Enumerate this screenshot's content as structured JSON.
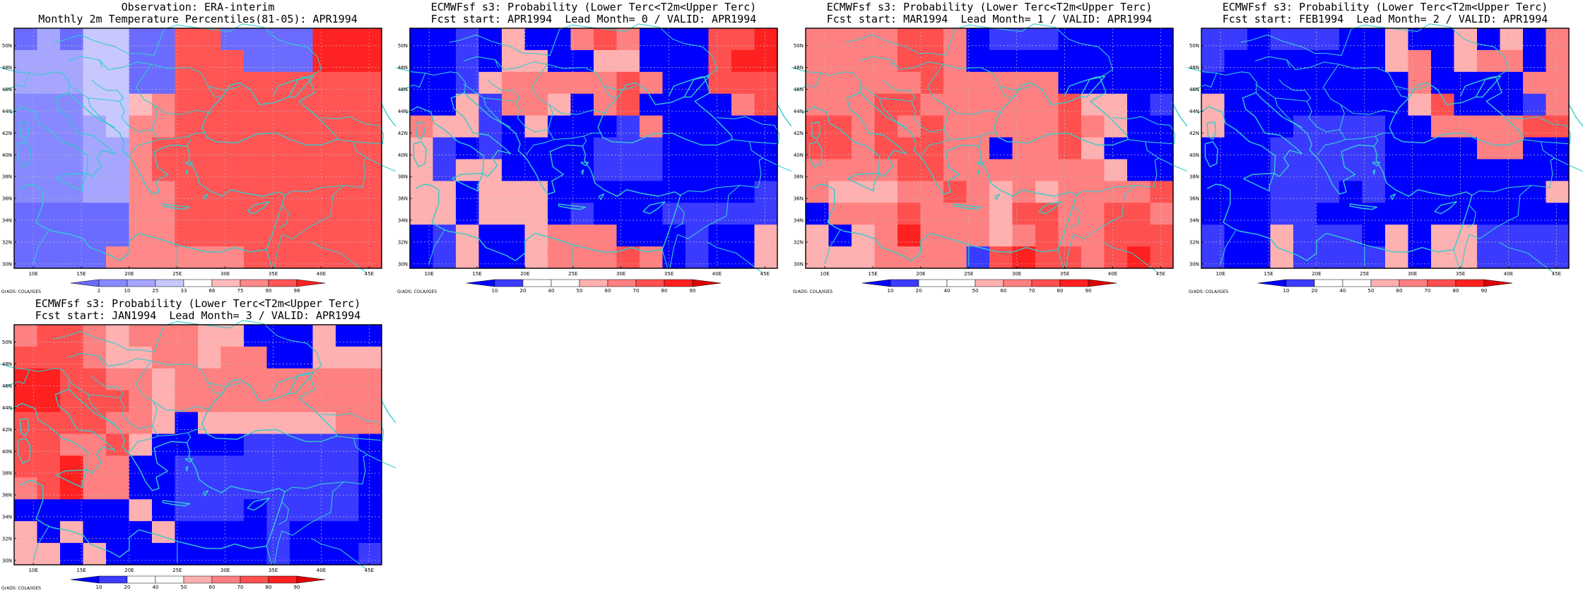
{
  "colors": {
    "coast": "#33cccc",
    "frame": "#000000",
    "grid": "#bbbbbb",
    "obs_scale": [
      "#6b6bff",
      "#8888ff",
      "#a6a6ff",
      "#c8c8ff",
      "#ffffff",
      "#ffbbbb",
      "#ff8888",
      "#ff5555",
      "#ff2222"
    ],
    "prob_scale": [
      "#0000ff",
      "#3b3bff",
      "#ffffff",
      "#ffffff",
      "#ffb0b0",
      "#ff8080",
      "#ff5050",
      "#ff2020",
      "#dd0000"
    ]
  },
  "axes": {
    "lat_labels": [
      "30N",
      "32N",
      "34N",
      "36N",
      "38N",
      "40N",
      "42N",
      "44N",
      "46N",
      "48N",
      "50N"
    ],
    "lon_labels": [
      "10E",
      "15E",
      "20E",
      "25E",
      "30E",
      "35E",
      "40E",
      "45E"
    ]
  },
  "panels": [
    {
      "title_line1": "Observation: ERA-interim",
      "title_line2": "Monthly 2m Temperature Percentiles(81-05): APR1994",
      "colorbar_labels": [
        "2",
        "10",
        "25",
        "33",
        "66",
        "75",
        "90",
        "98"
      ],
      "credit": "GrADS: COLA/IGES",
      "map_data": {
        "type": "gridded-field",
        "region": "30N-51N, 8E-46E",
        "valid": "APR1994",
        "grid": [
          [
            0,
            2,
            0,
            3,
            3,
            0,
            0,
            7,
            7,
            0,
            0,
            0,
            0,
            8,
            8,
            8
          ],
          [
            2,
            2,
            2,
            3,
            3,
            0,
            0,
            7,
            7,
            7,
            0,
            0,
            0,
            8,
            8,
            8
          ],
          [
            2,
            2,
            2,
            3,
            3,
            0,
            0,
            7,
            7,
            7,
            7,
            7,
            7,
            7,
            7,
            7
          ],
          [
            1,
            1,
            1,
            3,
            3,
            5,
            6,
            7,
            7,
            7,
            7,
            7,
            7,
            7,
            7,
            7
          ],
          [
            1,
            1,
            1,
            2,
            3,
            6,
            6,
            7,
            7,
            7,
            7,
            7,
            7,
            7,
            7,
            7
          ],
          [
            1,
            1,
            1,
            2,
            2,
            6,
            7,
            7,
            7,
            7,
            7,
            7,
            7,
            7,
            7,
            7
          ],
          [
            1,
            1,
            1,
            2,
            2,
            6,
            7,
            7,
            7,
            7,
            7,
            7,
            7,
            7,
            7,
            7
          ],
          [
            1,
            1,
            1,
            2,
            2,
            6,
            6,
            7,
            7,
            7,
            7,
            7,
            7,
            7,
            7,
            7
          ],
          [
            0,
            0,
            0,
            0,
            0,
            6,
            6,
            7,
            7,
            7,
            7,
            7,
            7,
            7,
            7,
            7
          ],
          [
            0,
            0,
            0,
            0,
            0,
            6,
            6,
            7,
            7,
            7,
            7,
            7,
            7,
            7,
            7,
            7
          ],
          [
            0,
            0,
            0,
            0,
            6,
            6,
            6,
            6,
            6,
            6,
            7,
            7,
            7,
            7,
            7,
            7
          ]
        ]
      }
    },
    {
      "title_line1": "ECMWFsf s3: Probability (Lower Terc<T2m<Upper Terc)",
      "title_line2": "Fcst start: APR1994  Lead Month= 0 / VALID: APR1994",
      "colorbar_labels": [
        "10",
        "20",
        "40",
        "50",
        "60",
        "70",
        "80",
        "90"
      ],
      "credit": "GrADS: COLA/IGES",
      "map_data": {
        "type": "gridded-field",
        "region": "30N-51N, 8E-46E",
        "valid": "APR1994",
        "grid": [
          [
            0,
            0,
            1,
            0,
            4,
            0,
            0,
            5,
            6,
            5,
            0,
            0,
            0,
            6,
            6,
            7
          ],
          [
            0,
            0,
            1,
            0,
            4,
            4,
            0,
            0,
            4,
            4,
            0,
            0,
            0,
            6,
            7,
            7
          ],
          [
            0,
            0,
            1,
            4,
            5,
            5,
            5,
            5,
            5,
            6,
            5,
            0,
            0,
            6,
            6,
            6
          ],
          [
            0,
            0,
            4,
            1,
            5,
            5,
            4,
            0,
            5,
            6,
            0,
            0,
            0,
            0,
            5,
            6
          ],
          [
            5,
            4,
            4,
            1,
            0,
            4,
            0,
            0,
            0,
            1,
            5,
            0,
            0,
            0,
            0,
            0
          ],
          [
            4,
            1,
            0,
            1,
            0,
            0,
            0,
            0,
            1,
            1,
            1,
            0,
            0,
            0,
            0,
            0
          ],
          [
            4,
            1,
            4,
            4,
            0,
            0,
            0,
            0,
            1,
            1,
            1,
            0,
            0,
            0,
            0,
            0
          ],
          [
            4,
            4,
            0,
            4,
            4,
            4,
            0,
            0,
            0,
            0,
            0,
            0,
            0,
            0,
            0,
            1
          ],
          [
            4,
            4,
            0,
            4,
            4,
            4,
            0,
            1,
            0,
            0,
            0,
            1,
            1,
            1,
            1,
            1
          ],
          [
            0,
            1,
            4,
            0,
            0,
            4,
            5,
            5,
            5,
            0,
            0,
            0,
            1,
            0,
            0,
            4
          ],
          [
            0,
            1,
            4,
            0,
            0,
            4,
            5,
            5,
            5,
            6,
            5,
            0,
            1,
            0,
            0,
            4
          ]
        ]
      }
    },
    {
      "title_line1": "ECMWFsf s3: Probability (Lower Terc<T2m<Upper Terc)",
      "title_line2": "Fcst start: MAR1994  Lead Month= 1 / VALID: APR1994",
      "colorbar_labels": [
        "10",
        "20",
        "40",
        "50",
        "60",
        "70",
        "80",
        "90"
      ],
      "credit": "GrADS: COLA/IGES",
      "map_data": {
        "type": "gridded-field",
        "region": "30N-51N, 8E-46E",
        "valid": "APR1994",
        "grid": [
          [
            5,
            5,
            5,
            5,
            6,
            6,
            5,
            0,
            1,
            1,
            1,
            0,
            0,
            0,
            0,
            0
          ],
          [
            5,
            5,
            5,
            5,
            6,
            6,
            5,
            0,
            0,
            0,
            0,
            0,
            0,
            0,
            0,
            0
          ],
          [
            5,
            5,
            5,
            5,
            5,
            6,
            5,
            5,
            5,
            5,
            5,
            0,
            0,
            0,
            0,
            0
          ],
          [
            5,
            5,
            5,
            6,
            6,
            5,
            5,
            5,
            5,
            5,
            5,
            6,
            4,
            4,
            0,
            1
          ],
          [
            6,
            6,
            5,
            6,
            5,
            6,
            5,
            5,
            5,
            5,
            5,
            6,
            5,
            4,
            0,
            0
          ],
          [
            6,
            6,
            5,
            6,
            6,
            6,
            5,
            5,
            0,
            5,
            5,
            6,
            4,
            0,
            0,
            0
          ],
          [
            5,
            5,
            5,
            5,
            6,
            6,
            5,
            5,
            5,
            5,
            5,
            5,
            5,
            4,
            0,
            0
          ],
          [
            5,
            4,
            4,
            4,
            5,
            5,
            6,
            5,
            4,
            5,
            4,
            5,
            5,
            5,
            5,
            6
          ],
          [
            0,
            5,
            5,
            5,
            6,
            5,
            5,
            5,
            4,
            6,
            6,
            5,
            5,
            6,
            6,
            5
          ],
          [
            4,
            0,
            4,
            5,
            7,
            5,
            5,
            5,
            4,
            5,
            6,
            5,
            5,
            6,
            6,
            6
          ],
          [
            4,
            4,
            4,
            5,
            5,
            5,
            5,
            1,
            6,
            7,
            6,
            6,
            5,
            6,
            7,
            6
          ]
        ]
      }
    },
    {
      "title_line1": "ECMWFsf s3: Probability (Lower Terc<T2m<Upper Terc)",
      "title_line2": "Fcst start: FEB1994  Lead Month= 2 / VALID: APR1994",
      "colorbar_labels": [
        "10",
        "20",
        "40",
        "50",
        "60",
        "70",
        "80",
        "90"
      ],
      "credit": "GrADS: COLA/IGES",
      "map_data": {
        "type": "gridded-field",
        "region": "30N-51N, 8E-46E",
        "valid": "APR1994",
        "grid": [
          [
            1,
            1,
            0,
            1,
            1,
            1,
            0,
            0,
            4,
            0,
            0,
            4,
            0,
            4,
            0,
            5
          ],
          [
            1,
            0,
            0,
            0,
            0,
            0,
            0,
            0,
            4,
            5,
            0,
            4,
            5,
            5,
            0,
            5
          ],
          [
            0,
            0,
            0,
            0,
            0,
            0,
            0,
            0,
            0,
            5,
            0,
            0,
            0,
            0,
            5,
            5
          ],
          [
            4,
            0,
            0,
            0,
            0,
            0,
            0,
            0,
            0,
            4,
            6,
            0,
            0,
            0,
            1,
            5
          ],
          [
            4,
            0,
            0,
            0,
            1,
            1,
            1,
            1,
            0,
            0,
            5,
            5,
            5,
            5,
            6,
            6
          ],
          [
            0,
            0,
            0,
            1,
            1,
            1,
            1,
            1,
            0,
            0,
            0,
            0,
            5,
            5,
            0,
            0
          ],
          [
            0,
            0,
            0,
            1,
            1,
            1,
            1,
            1,
            0,
            0,
            0,
            0,
            0,
            0,
            0,
            0
          ],
          [
            0,
            0,
            0,
            1,
            1,
            1,
            0,
            1,
            0,
            0,
            0,
            0,
            0,
            0,
            0,
            4
          ],
          [
            0,
            0,
            0,
            1,
            1,
            0,
            0,
            0,
            0,
            0,
            0,
            0,
            0,
            0,
            0,
            0
          ],
          [
            1,
            0,
            0,
            4,
            1,
            1,
            1,
            0,
            4,
            0,
            4,
            4,
            1,
            1,
            1,
            1
          ],
          [
            1,
            0,
            0,
            4,
            1,
            1,
            1,
            1,
            4,
            0,
            4,
            4,
            1,
            1,
            1,
            1
          ]
        ]
      }
    },
    {
      "title_line1": "ECMWFsf s3: Probability (Lower Terc<T2m<Upper Terc)",
      "title_line2": "Fcst start: JAN1994  Lead Month= 3 / VALID: APR1994",
      "colorbar_labels": [
        "10",
        "20",
        "40",
        "50",
        "60",
        "70",
        "80",
        "90"
      ],
      "credit": "GrADS: COLA/IGES",
      "map_data": {
        "type": "gridded-field",
        "region": "30N-51N, 8E-46E",
        "valid": "APR1994",
        "grid": [
          [
            5,
            6,
            6,
            5,
            4,
            5,
            5,
            5,
            4,
            4,
            0,
            0,
            0,
            4,
            0,
            0
          ],
          [
            6,
            6,
            6,
            5,
            4,
            4,
            5,
            5,
            4,
            5,
            5,
            0,
            0,
            4,
            4,
            4
          ],
          [
            7,
            7,
            6,
            6,
            5,
            5,
            4,
            5,
            5,
            5,
            5,
            5,
            5,
            5,
            5,
            5
          ],
          [
            7,
            7,
            6,
            6,
            6,
            5,
            4,
            5,
            5,
            5,
            5,
            5,
            5,
            5,
            5,
            5
          ],
          [
            6,
            6,
            6,
            6,
            5,
            5,
            4,
            0,
            4,
            4,
            4,
            4,
            4,
            4,
            5,
            5
          ],
          [
            6,
            6,
            5,
            5,
            6,
            4,
            0,
            0,
            0,
            0,
            1,
            1,
            1,
            1,
            1,
            0
          ],
          [
            6,
            6,
            7,
            5,
            5,
            0,
            0,
            1,
            1,
            1,
            1,
            1,
            1,
            1,
            1,
            0
          ],
          [
            5,
            6,
            7,
            5,
            5,
            0,
            0,
            1,
            1,
            1,
            1,
            1,
            1,
            1,
            1,
            0
          ],
          [
            0,
            0,
            0,
            0,
            0,
            4,
            0,
            1,
            1,
            1,
            0,
            1,
            1,
            1,
            1,
            0
          ],
          [
            4,
            0,
            4,
            0,
            0,
            0,
            4,
            0,
            0,
            0,
            0,
            1,
            0,
            0,
            0,
            0
          ],
          [
            4,
            4,
            0,
            4,
            0,
            0,
            0,
            0,
            0,
            0,
            0,
            1,
            0,
            0,
            0,
            1
          ]
        ]
      }
    }
  ]
}
